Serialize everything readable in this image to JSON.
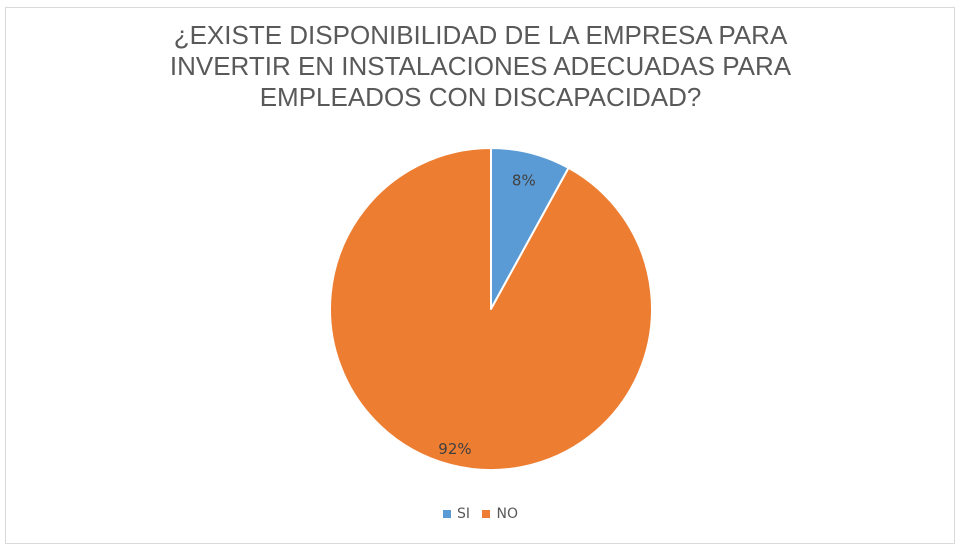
{
  "chart_data": {
    "type": "pie",
    "title_lines": [
      "¿EXISTE DISPONIBILIDAD  DE LA EMPRESA PARA",
      "INVERTIR  EN INSTALACIONES ADECUADAS PARA",
      "EMPLEADOS CON DISCAPACIDAD?"
    ],
    "categories": [
      "SI",
      "NO"
    ],
    "values": [
      8,
      92
    ],
    "data_labels": [
      "8%",
      "92%"
    ],
    "colors": [
      "#5b9bd5",
      "#ed7d31"
    ],
    "legend_position": "bottom"
  }
}
